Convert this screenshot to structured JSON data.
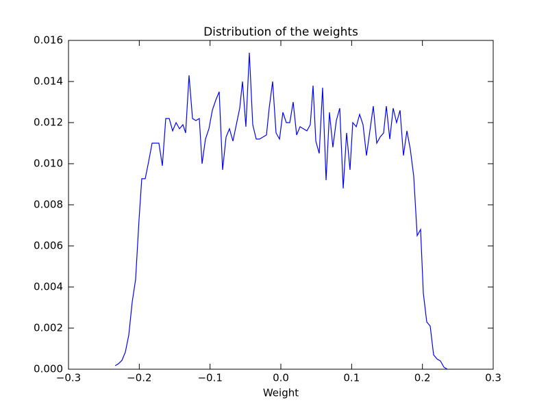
{
  "chart_data": {
    "type": "line",
    "title": "Distribution of the weights",
    "x_label": "Weight",
    "color": "#0000ff",
    "x": [
      -0.234,
      -0.2293,
      -0.2245,
      -0.2197,
      -0.2148,
      -0.21,
      -0.2052,
      -0.2003,
      -0.1965,
      -0.1916,
      -0.1868,
      -0.1819,
      -0.1771,
      -0.1723,
      -0.1674,
      -0.1626,
      -0.1577,
      -0.1529,
      -0.148,
      -0.1432,
      -0.1384,
      -0.1345,
      -0.1297,
      -0.1248,
      -0.12,
      -0.1152,
      -0.1113,
      -0.1065,
      -0.1016,
      -0.0968,
      -0.0919,
      -0.0871,
      -0.0823,
      -0.0774,
      -0.0726,
      -0.0677,
      -0.0629,
      -0.0581,
      -0.0542,
      -0.0494,
      -0.0445,
      -0.0397,
      -0.0348,
      -0.03,
      -0.0252,
      -0.0203,
      -0.0165,
      -0.0116,
      -0.0068,
      -0.0019,
      0.0029,
      0.0077,
      0.0126,
      0.0174,
      0.0223,
      0.0271,
      0.0319,
      0.0368,
      0.0416,
      0.0455,
      0.0494,
      0.0542,
      0.059,
      0.0639,
      0.0687,
      0.0735,
      0.0784,
      0.0832,
      0.0881,
      0.0929,
      0.0977,
      0.1016,
      0.1065,
      0.1113,
      0.1161,
      0.121,
      0.1258,
      0.1306,
      0.1355,
      0.1403,
      0.1452,
      0.149,
      0.1539,
      0.1587,
      0.1635,
      0.1684,
      0.1732,
      0.1781,
      0.1829,
      0.1877,
      0.1926,
      0.1974,
      0.2013,
      0.2061,
      0.211,
      0.2158,
      0.2206,
      0.2255,
      0.2303,
      0.2352
    ],
    "values": [
      0.00017,
      0.00027,
      0.00043,
      0.00083,
      0.00167,
      0.00327,
      0.00437,
      0.0073,
      0.00927,
      0.00927,
      0.0101,
      0.011,
      0.011,
      0.011,
      0.0099,
      0.0122,
      0.0122,
      0.0116,
      0.012,
      0.0117,
      0.0119,
      0.0115,
      0.0143,
      0.0122,
      0.0121,
      0.0122,
      0.01,
      0.0112,
      0.0117,
      0.0126,
      0.0131,
      0.0135,
      0.0097,
      0.0113,
      0.0117,
      0.0111,
      0.0119,
      0.0127,
      0.014,
      0.0118,
      0.0154,
      0.0119,
      0.0112,
      0.0112,
      0.0113,
      0.0114,
      0.0127,
      0.014,
      0.0115,
      0.0112,
      0.0125,
      0.012,
      0.012,
      0.013,
      0.0114,
      0.0118,
      0.0117,
      0.0116,
      0.0119,
      0.0138,
      0.0111,
      0.0105,
      0.0137,
      0.0092,
      0.0125,
      0.0108,
      0.0121,
      0.0127,
      0.0088,
      0.0115,
      0.0097,
      0.012,
      0.0118,
      0.0124,
      0.0119,
      0.0104,
      0.0116,
      0.0128,
      0.011,
      0.0113,
      0.0115,
      0.0128,
      0.0112,
      0.0127,
      0.012,
      0.0126,
      0.0104,
      0.0116,
      0.0107,
      0.0094,
      0.0065,
      0.0068,
      0.0037,
      0.0023,
      0.0021,
      0.0007,
      0.0005,
      0.0004,
      0.0001,
      0.0
    ],
    "xlim": [
      -0.3,
      0.3
    ],
    "xticks": [
      {
        "value": -0.3,
        "label": "−0.3"
      },
      {
        "value": -0.2,
        "label": "−0.2"
      },
      {
        "value": -0.1,
        "label": "−0.1"
      },
      {
        "value": 0,
        "label": "0.0"
      },
      0.1,
      0.2,
      0.3
    ],
    "ylim": [
      0,
      0.016
    ],
    "yticks": [
      {
        "value": 0,
        "label": "0.000"
      },
      {
        "value": 0.002,
        "label": "0.002"
      },
      {
        "value": 0.004,
        "label": "0.004"
      },
      {
        "value": 0.006,
        "label": "0.006"
      },
      {
        "value": 0.008,
        "label": "0.008"
      },
      {
        "value": 0.01,
        "label": "0.010"
      },
      {
        "value": 0.012,
        "label": "0.012"
      },
      {
        "value": 0.014,
        "label": "0.014"
      },
      {
        "value": 0.016,
        "label": "0.016"
      }
    ]
  }
}
